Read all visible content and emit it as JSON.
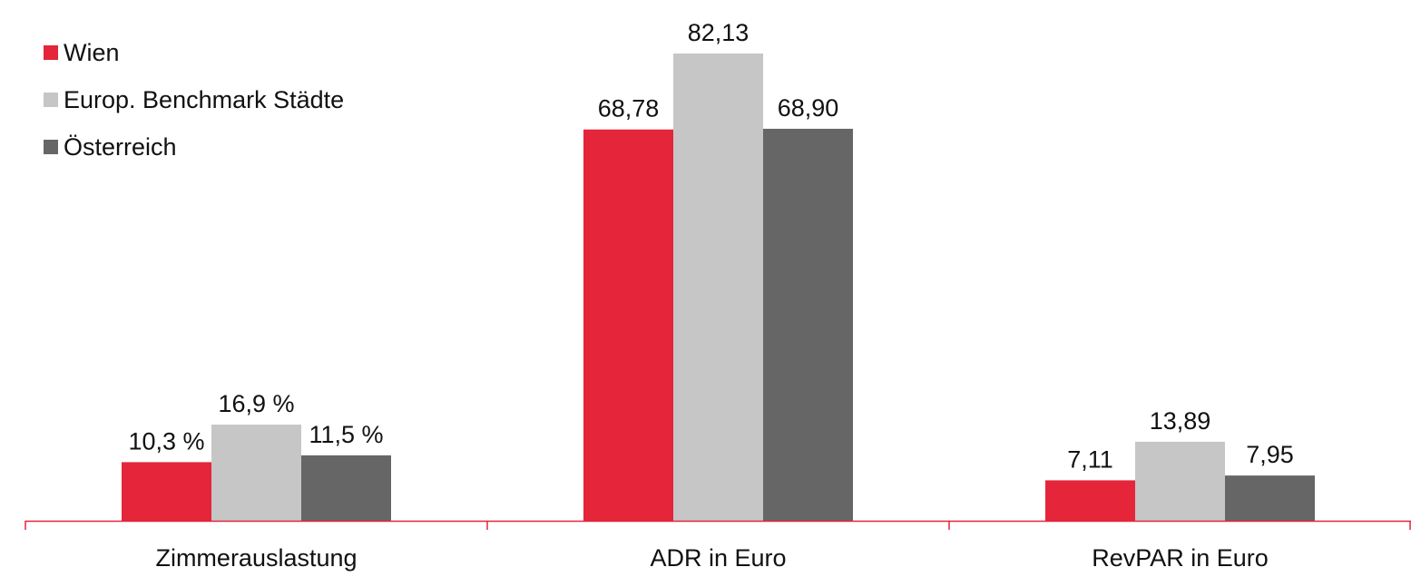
{
  "chart_data": {
    "type": "bar",
    "categories": [
      "Zimmerauslastung",
      "ADR in Euro",
      "RevPAR in Euro"
    ],
    "series": [
      {
        "name": "Wien",
        "color": "#e4253a",
        "values": [
          10.3,
          68.78,
          7.11
        ],
        "labels": [
          "10,3 %",
          "68,78",
          "7,11"
        ]
      },
      {
        "name": "Europ. Benchmark Städte",
        "color": "#c6c6c6",
        "values": [
          16.9,
          82.13,
          13.89
        ],
        "labels": [
          "16,9 %",
          "82,13",
          "13,89"
        ]
      },
      {
        "name": "Österreich",
        "color": "#666666",
        "values": [
          11.5,
          68.9,
          7.95
        ],
        "labels": [
          "11,5 %",
          "68,90",
          "7,95"
        ]
      }
    ],
    "ylim": [
      0,
      82.13
    ],
    "grid": false,
    "legend_position": "top-left",
    "axis_color": "#e4253a"
  }
}
